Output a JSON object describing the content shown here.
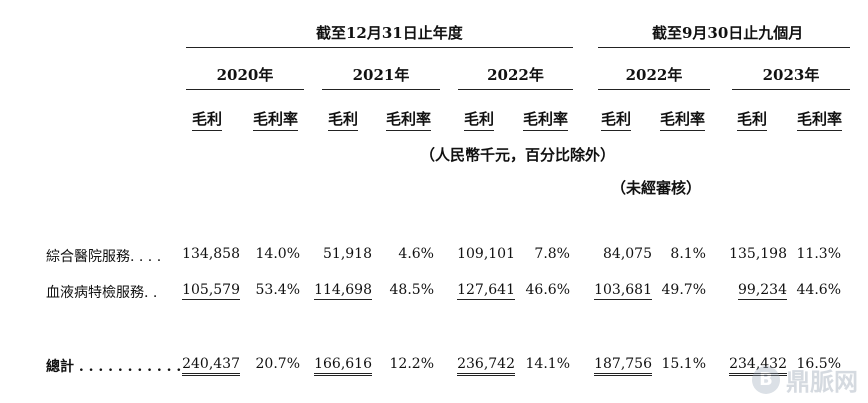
{
  "headers": {
    "group_year_end": "截至12月31日止年度",
    "group_nine_months": "截至9月30日止九個月",
    "years": [
      "2020年",
      "2021年",
      "2022年",
      "2022年",
      "2023年"
    ],
    "sub_gross_profit": "毛利",
    "sub_gross_margin": "毛利率",
    "unit_note": "（人民幣千元，百分比除外）",
    "unaudited": "（未經審核）"
  },
  "rows": [
    {
      "label": "綜合醫院服務. . . .",
      "values": [
        "134,858",
        "14.0%",
        "51,918",
        "4.6%",
        "109,101",
        "7.8%",
        "84,075",
        "8.1%",
        "135,198",
        "11.3%"
      ]
    },
    {
      "label": "血液病特檢服務. .",
      "values": [
        "105,579",
        "53.4%",
        "114,698",
        "48.5%",
        "127,641",
        "46.6%",
        "103,681",
        "49.7%",
        "99,234",
        "44.6%"
      ]
    }
  ],
  "total": {
    "label": "總計 . . . . . . . . . . .",
    "values": [
      "240,437",
      "20.7%",
      "166,616",
      "12.2%",
      "236,742",
      "14.1%",
      "187,756",
      "15.1%",
      "234,432",
      "16.5%"
    ]
  },
  "watermark": {
    "logo": "B",
    "text": "鼎脈网"
  }
}
